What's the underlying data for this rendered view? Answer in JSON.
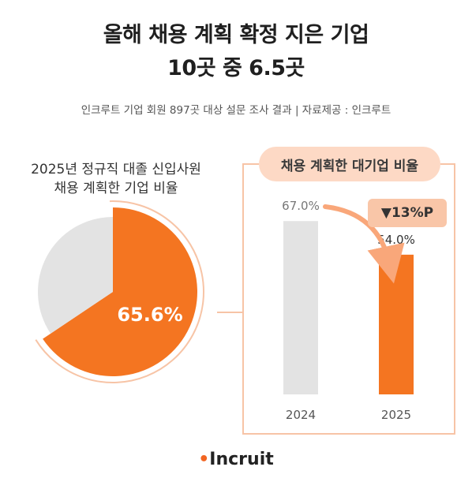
{
  "header": {
    "title_line1": "올해 채용 계획 확정 지은 기업",
    "title_line2": "10곳 중 6.5곳",
    "subtitle": "인크루트 기업 회원 897곳 대상 설문 조사 결과 | 자료제공 : 인크루트"
  },
  "pie_section": {
    "label_line1": "2025년 정규직 대졸 신입사원",
    "label_line2": "채용 계획한 기업 비율"
  },
  "bar_section": {
    "title": "채용 계획한 대기업 비율",
    "delta": "▼13%P"
  },
  "logo": {
    "text": "Incruit"
  },
  "colors": {
    "accent": "#f47521",
    "gray": "#e3e3e3",
    "connector": "#f7c4a6"
  },
  "chart_data": [
    {
      "type": "pie",
      "title": "2025년 정규직 대졸 신입사원 채용 계획한 기업 비율",
      "slices": [
        {
          "value": 65.6,
          "label": "65.6%",
          "color": "#f47521"
        },
        {
          "value": 34.4,
          "label": "",
          "color": "#e3e3e3"
        }
      ]
    },
    {
      "type": "bar",
      "title": "채용 계획한 대기업 비율",
      "categories": [
        "2024",
        "2025"
      ],
      "values": [
        67.0,
        54.0
      ],
      "value_labels": [
        "67.0%",
        "54.0%"
      ],
      "colors": [
        "#e3e3e3",
        "#f47521"
      ],
      "ylim": [
        0,
        100
      ],
      "annotation": "▼13%P"
    }
  ]
}
